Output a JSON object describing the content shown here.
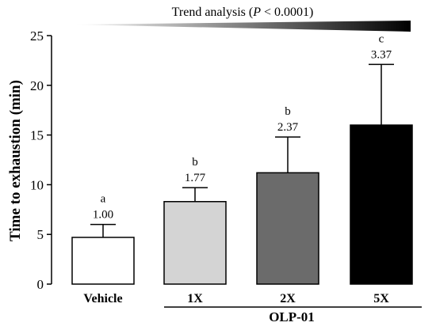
{
  "chart_data": {
    "type": "bar",
    "title": "",
    "trend_label_prefix": "Trend analysis (",
    "trend_label_italic": "P",
    "trend_label_suffix": " < 0.0001)",
    "ylabel": "Time to exhaustion (min)",
    "xlabel": "",
    "ylim": [
      0,
      25
    ],
    "yticks": [
      0,
      5,
      10,
      15,
      20,
      25
    ],
    "grid": false,
    "categories": [
      "Vehicle",
      "1X",
      "2X",
      "5X"
    ],
    "group_label": "OLP-01",
    "values": [
      4.7,
      8.3,
      11.2,
      16.0
    ],
    "errors": [
      1.3,
      1.4,
      3.6,
      6.1
    ],
    "fold_labels": [
      "1.00",
      "1.77",
      "2.37",
      "3.37"
    ],
    "significance_letters": [
      "a",
      "b",
      "b",
      "c"
    ],
    "bar_colors": [
      "#ffffff",
      "#d4d4d4",
      "#6b6b6b",
      "#000000"
    ],
    "trend_gradient": [
      "#ffffff",
      "#000000"
    ]
  }
}
